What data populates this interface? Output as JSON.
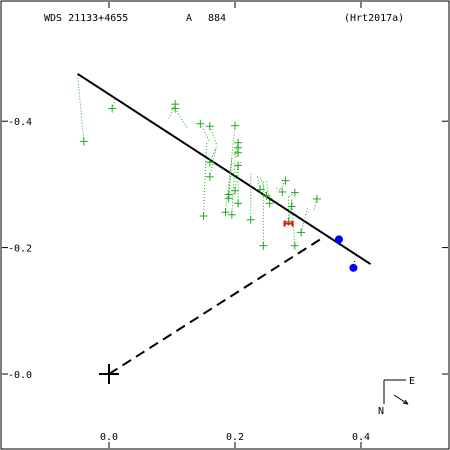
{
  "header": {
    "designation": "WDS 21133+4655",
    "component": "A",
    "discoverer_number": "884",
    "reference": "(Hrt2017a)"
  },
  "compass": {
    "east_label": "E",
    "north_label": "N"
  },
  "chart_data": {
    "type": "scatter",
    "title": "WDS 21133+4655 A 884",
    "xlim": [
      -0.15,
      0.55
    ],
    "ylim": [
      -0.12,
      0.55
    ],
    "x_ticks": [
      0.0,
      0.2,
      0.4
    ],
    "x_tick_labels": [
      "0.0",
      "0.2",
      "0.4"
    ],
    "y_ticks": [
      0.0,
      0.2,
      0.4
    ],
    "y_tick_labels": [
      "-0.0",
      "-0.2",
      "-0.4"
    ],
    "grid": false,
    "primary_star": [
      0.0,
      0.0
    ],
    "orbit_line": {
      "x": [
        -0.05,
        0.415
      ],
      "y": [
        0.475,
        0.174
      ],
      "color": "#000000"
    },
    "node_line": {
      "x": [
        0.0,
        0.34
      ],
      "y": [
        0.0,
        0.216
      ],
      "color": "#000000",
      "style": "dashed"
    },
    "series": [
      {
        "type": "observed",
        "color": "#22aa22",
        "points": [
          [
            -0.04,
            0.368
          ],
          [
            0.005,
            0.42
          ],
          [
            0.105,
            0.427
          ],
          [
            0.105,
            0.42
          ],
          [
            0.145,
            0.396
          ],
          [
            0.16,
            0.392
          ],
          [
            0.2,
            0.393
          ],
          [
            0.205,
            0.366
          ],
          [
            0.205,
            0.358
          ],
          [
            0.205,
            0.35
          ],
          [
            0.16,
            0.335
          ],
          [
            0.205,
            0.33
          ],
          [
            0.16,
            0.312
          ],
          [
            0.28,
            0.306
          ],
          [
            0.24,
            0.292
          ],
          [
            0.2,
            0.29
          ],
          [
            0.275,
            0.288
          ],
          [
            0.295,
            0.287
          ],
          [
            0.19,
            0.284
          ],
          [
            0.25,
            0.282
          ],
          [
            0.19,
            0.278
          ],
          [
            0.33,
            0.277
          ],
          [
            0.205,
            0.27
          ],
          [
            0.255,
            0.27
          ],
          [
            0.29,
            0.265
          ],
          [
            0.185,
            0.256
          ],
          [
            0.195,
            0.252
          ],
          [
            0.15,
            0.25
          ],
          [
            0.225,
            0.244
          ],
          [
            0.285,
            0.241
          ],
          [
            0.305,
            0.224
          ],
          [
            0.245,
            0.203
          ],
          [
            0.295,
            0.203
          ]
        ],
        "predicted": [
          [
            -0.05,
            0.475
          ],
          [
            0.01,
            0.437
          ],
          [
            0.095,
            0.404
          ],
          [
            0.125,
            0.388
          ],
          [
            0.16,
            0.367
          ],
          [
            0.172,
            0.36
          ],
          [
            0.195,
            0.345
          ],
          [
            0.198,
            0.344
          ],
          [
            0.2,
            0.343
          ],
          [
            0.202,
            0.341
          ],
          [
            0.17,
            0.358
          ],
          [
            0.21,
            0.336
          ],
          [
            0.17,
            0.358
          ],
          [
            0.27,
            0.29
          ],
          [
            0.235,
            0.315
          ],
          [
            0.205,
            0.335
          ],
          [
            0.265,
            0.295
          ],
          [
            0.285,
            0.28
          ],
          [
            0.195,
            0.342
          ],
          [
            0.24,
            0.312
          ],
          [
            0.195,
            0.342
          ],
          [
            0.325,
            0.258
          ],
          [
            0.205,
            0.335
          ],
          [
            0.25,
            0.305
          ],
          [
            0.29,
            0.278
          ],
          [
            0.195,
            0.342
          ],
          [
            0.2,
            0.338
          ],
          [
            0.155,
            0.368
          ],
          [
            0.225,
            0.32
          ],
          [
            0.285,
            0.28
          ],
          [
            0.315,
            0.262
          ],
          [
            0.245,
            0.306
          ],
          [
            0.29,
            0.278
          ]
        ]
      },
      {
        "type": "highlighted",
        "color": "#ff0000",
        "points": [
          [
            0.285,
            0.238
          ]
        ],
        "predicted": [
          [
            0.29,
            0.275
          ]
        ]
      },
      {
        "type": "dots",
        "color": "#0000ff",
        "points": [
          [
            0.365,
            0.213
          ],
          [
            0.388,
            0.168
          ]
        ],
        "predicted": [
          [
            0.365,
            0.213
          ],
          [
            0.39,
            0.18
          ]
        ]
      }
    ]
  }
}
